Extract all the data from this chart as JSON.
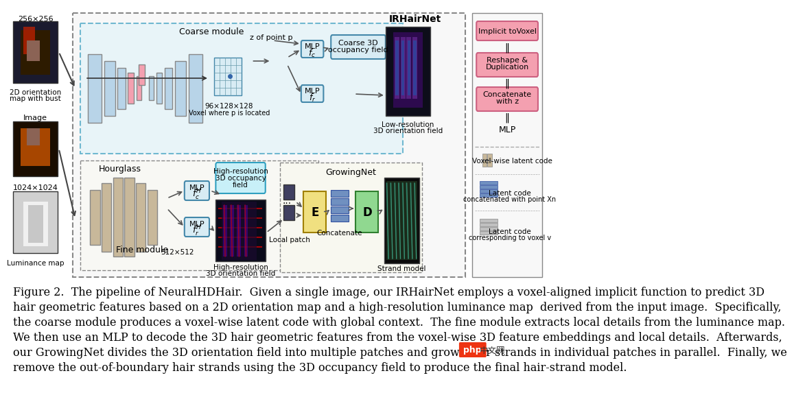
{
  "bg_color": "#ffffff",
  "diagram_bg": "#ffffff",
  "caption_lines": [
    "Figure 2.  The pipeline of NeuralHDHair.  Given a single image, our IRHairNet employs a voxel-aligned implicit function to predict 3D",
    "hair geometric features based on a 2D orientation map and a high-resolution luminance map  derived from the input image.  Specifically,",
    "the coarse module produces a voxel-wise latent code with global context.  The fine module extracts local details from the luminance map.",
    "We then use an MLP to decode the 3D hair geometric features from the voxel-wise 3D feature embeddings and local details.  Afterwards,",
    "our GrowingNet divides the 3D orientation field into multiple patches and grows hair strands in individual patches in parallel.  Finally, we",
    "remove the out-of-boundary hair strands using the 3D occupancy field to produce the final hair-strand model."
  ],
  "caption_fontsize": 11.5,
  "title_color": "#000000",
  "light_blue": "#c8e8f0",
  "light_blue2": "#a8d8e8",
  "pink": "#f4a0b0",
  "tan": "#c8b89a",
  "yellow_light": "#f5e8a0",
  "green_light": "#90d8a0",
  "purple_light": "#c8a8d8",
  "gray_light": "#d0d0d0"
}
